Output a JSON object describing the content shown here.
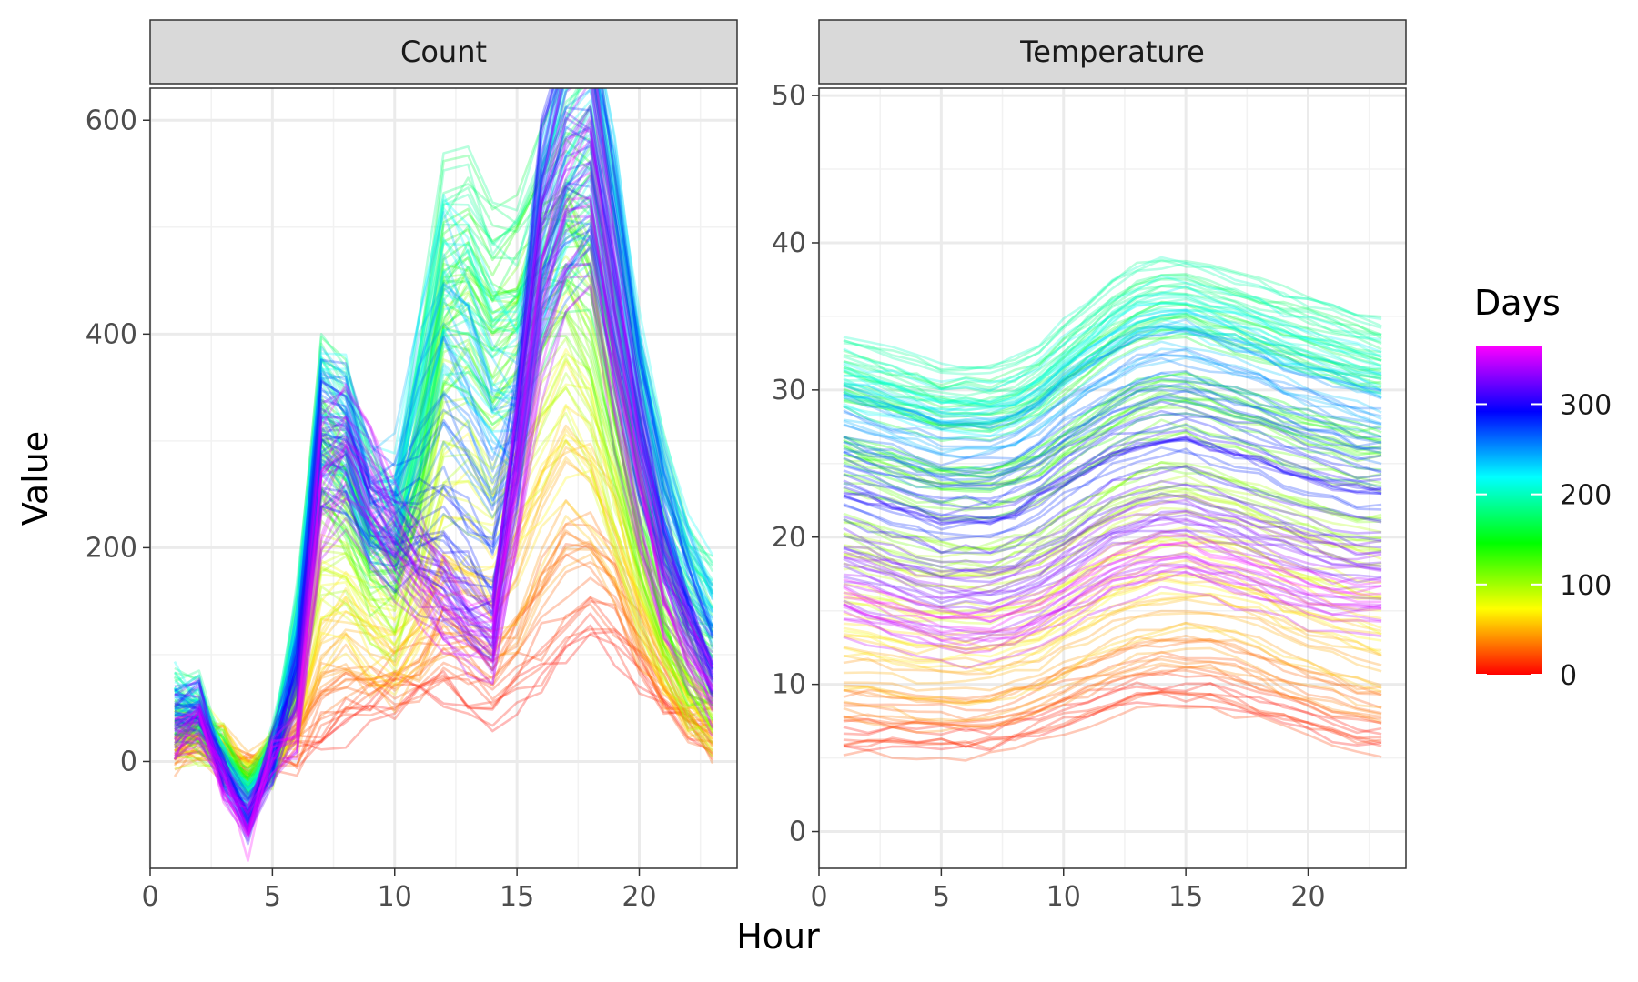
{
  "chart_data": {
    "type": "line",
    "xlabel": "Hour",
    "ylabel": "Value",
    "facets": [
      {
        "strip": "Count",
        "xlim": [
          0,
          24
        ],
        "ylim": [
          -100,
          630
        ],
        "xticks": [
          0,
          5,
          10,
          15,
          20
        ],
        "yticks": [
          0,
          200,
          400,
          600
        ],
        "x": [
          1,
          2,
          3,
          4,
          5,
          6,
          7,
          8,
          9,
          10,
          11,
          12,
          13,
          14,
          15,
          16,
          17,
          18,
          19,
          20,
          21,
          22,
          23
        ],
        "representative_series": [
          {
            "day": 5,
            "values": [
              10,
              12,
              8,
              -5,
              2,
              5,
              15,
              30,
              45,
              55,
              60,
              65,
              50,
              40,
              55,
              70,
              90,
              110,
              100,
              70,
              50,
              30,
              20
            ]
          },
          {
            "day": 60,
            "values": [
              20,
              25,
              10,
              -10,
              5,
              30,
              120,
              140,
              110,
              90,
              120,
              180,
              170,
              150,
              190,
              250,
              300,
              280,
              220,
              150,
              90,
              50,
              30
            ]
          },
          {
            "day": 120,
            "values": [
              30,
              35,
              5,
              -20,
              5,
              80,
              260,
              230,
              180,
              170,
              250,
              400,
              420,
              380,
              410,
              460,
              480,
              420,
              300,
              200,
              120,
              70,
              40
            ]
          },
          {
            "day": 180,
            "values": [
              60,
              50,
              0,
              -30,
              5,
              120,
              330,
              300,
              230,
              210,
              320,
              460,
              470,
              430,
              440,
              470,
              520,
              560,
              450,
              330,
              230,
              170,
              150
            ]
          },
          {
            "day": 240,
            "values": [
              50,
              45,
              -5,
              -40,
              5,
              110,
              300,
              290,
              220,
              230,
              330,
              400,
              360,
              300,
              280,
              450,
              550,
              570,
              470,
              330,
              240,
              180,
              130
            ]
          },
          {
            "day": 300,
            "values": [
              40,
              50,
              -10,
              -50,
              5,
              80,
              290,
              280,
              230,
              200,
              180,
              160,
              140,
              120,
              300,
              500,
              550,
              560,
              420,
              300,
              200,
              130,
              80
            ]
          },
          {
            "day": 350,
            "values": [
              20,
              40,
              -20,
              -60,
              5,
              20,
              250,
              290,
              250,
              200,
              170,
              140,
              120,
              110,
              250,
              430,
              520,
              540,
              380,
              250,
              150,
              100,
              60
            ]
          }
        ]
      },
      {
        "strip": "Temperature",
        "xlim": [
          0,
          24
        ],
        "ylim": [
          -2.5,
          50.5
        ],
        "xticks": [
          0,
          5,
          10,
          15,
          20
        ],
        "yticks": [
          0,
          10,
          20,
          30,
          40,
          50
        ],
        "x": [
          1,
          2,
          3,
          4,
          5,
          6,
          7,
          8,
          9,
          10,
          11,
          12,
          13,
          14,
          15,
          16,
          17,
          18,
          19,
          20,
          21,
          22,
          23
        ],
        "representative_series": [
          {
            "day": 5,
            "values": [
              6,
              6,
              6,
              6,
              6,
              6,
              6,
              6.5,
              7,
              7.5,
              8,
              8.5,
              9,
              9,
              9,
              9,
              8.5,
              8,
              7.5,
              7,
              6.5,
              6,
              6
            ]
          },
          {
            "day": 60,
            "values": [
              12,
              12,
              11.5,
              11,
              11,
              11,
              11,
              11.5,
              12,
              13,
              14,
              15,
              15.5,
              16,
              16,
              16,
              15.5,
              15,
              14,
              13.5,
              13,
              12.5,
              12
            ]
          },
          {
            "day": 120,
            "values": [
              24,
              23.5,
              23,
              22.5,
              22,
              22,
              22,
              22.5,
              23,
              24,
              25,
              26,
              27,
              27.5,
              27.5,
              27,
              26.5,
              26,
              25.5,
              25,
              24.5,
              24,
              24
            ]
          },
          {
            "day": 180,
            "values": [
              33,
              32.5,
              32,
              31.5,
              31,
              31,
              31,
              31.5,
              32.5,
              34,
              35.5,
              37,
              38,
              38.5,
              38.5,
              38,
              37.5,
              37,
              36.5,
              36,
              35.5,
              35,
              34.5
            ]
          },
          {
            "day": 240,
            "values": [
              29,
              28.5,
              28,
              27.5,
              27,
              27,
              27,
              27.5,
              28.5,
              30,
              31,
              32,
              33,
              33.5,
              33.5,
              33,
              32.5,
              32,
              31,
              30.5,
              30,
              29.5,
              29
            ]
          },
          {
            "day": 300,
            "values": [
              22,
              21.5,
              21,
              20.5,
              20,
              20,
              20,
              20.5,
              21.5,
              22.5,
              23.5,
              24.5,
              25,
              25.5,
              25.5,
              25,
              24.5,
              24,
              23.5,
              23,
              22.5,
              22,
              22
            ]
          },
          {
            "day": 350,
            "values": [
              15,
              14.5,
              14,
              13.5,
              13,
              13,
              13,
              13.5,
              14,
              15,
              16,
              17,
              17.5,
              18,
              18,
              17.5,
              17,
              16.5,
              16,
              15.5,
              15,
              15,
              15
            ]
          }
        ]
      }
    ],
    "legend": {
      "title": "Days",
      "position": "right",
      "range": [
        0,
        365
      ],
      "ticks": [
        0,
        100,
        200,
        300
      ],
      "palette": [
        "#ff0000",
        "#ff8000",
        "#ffff00",
        "#80ff00",
        "#00ff00",
        "#00ff80",
        "#00ffff",
        "#0080ff",
        "#0000ff",
        "#8000ff",
        "#ff00ff"
      ]
    },
    "panel_background": "#ffffff",
    "strip_background": "#d9d9d9",
    "grid": true
  }
}
